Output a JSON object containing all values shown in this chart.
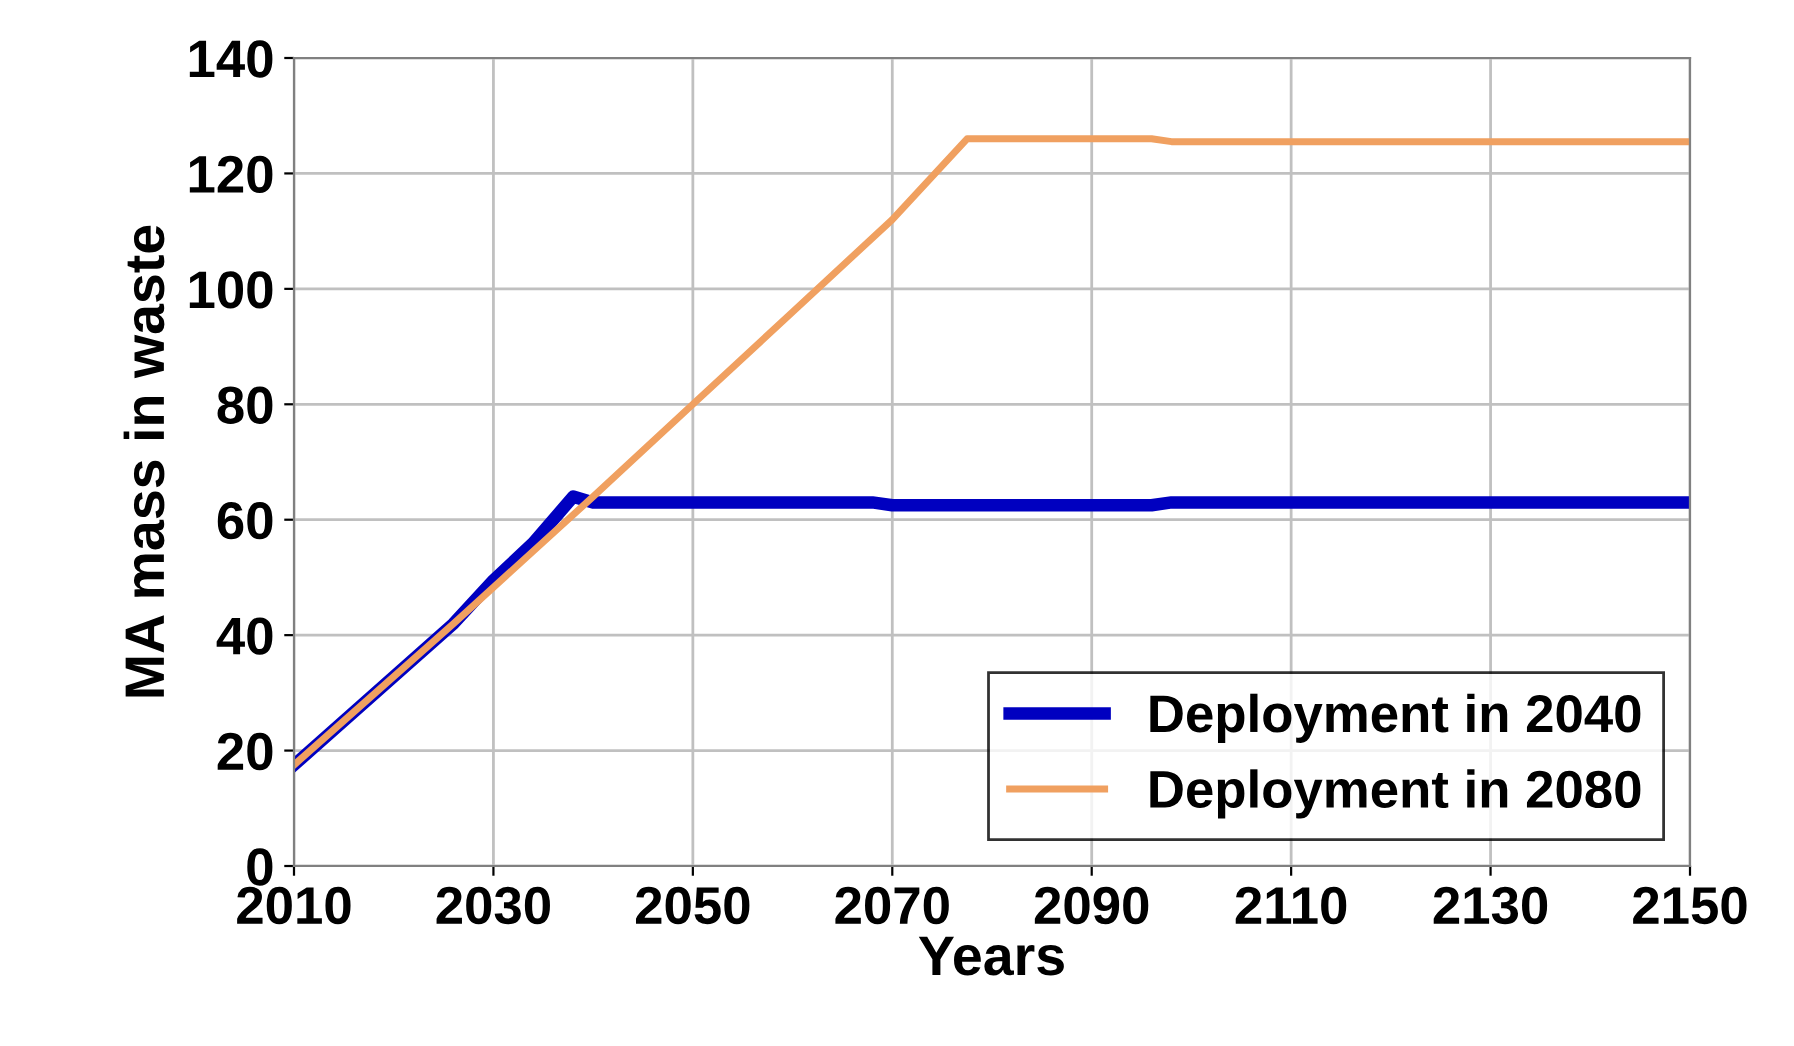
{
  "chart_data": {
    "type": "line",
    "xlabel": "Years",
    "ylabel": "MA mass in waste",
    "series": [
      {
        "name": "Deployment in 2040",
        "color": "#0000c0",
        "x": [
          2010,
          2026,
          2030,
          2034,
          2038,
          2040,
          2068,
          2070,
          2096,
          2098,
          2150
        ],
        "values": [
          17.5,
          42,
          49.5,
          56,
          64,
          63,
          63,
          62.5,
          62.5,
          63,
          63
        ]
      },
      {
        "name": "Deployment in 2080",
        "color": "#f0a060",
        "x": [
          2010,
          2026,
          2040,
          2050,
          2060,
          2070,
          2077.5,
          2096,
          2098,
          2150
        ],
        "values": [
          17.5,
          42,
          64,
          80,
          96,
          112,
          126,
          126,
          125.5,
          125.5
        ]
      }
    ],
    "xlim": [
      2010,
      2150
    ],
    "xticks": [
      2010,
      2030,
      2050,
      2070,
      2090,
      2110,
      2130,
      2150
    ],
    "ylim": [
      0,
      140
    ],
    "yticks": [
      0,
      20,
      40,
      60,
      80,
      100,
      120,
      140
    ],
    "grid": true,
    "legend": "bottom right"
  }
}
